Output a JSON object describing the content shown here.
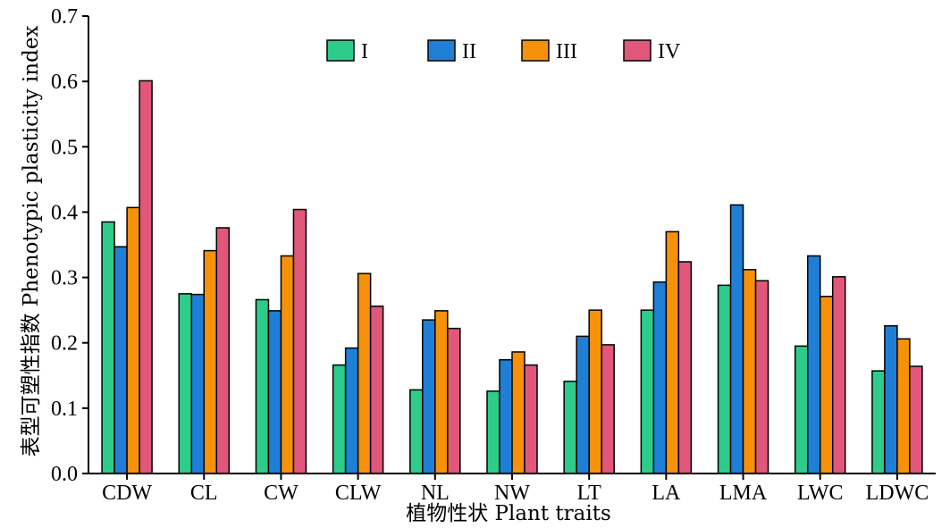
{
  "chart_data": {
    "type": "bar",
    "title": "",
    "xlabel": "植物性状 Plant traits",
    "ylabel": "表型可塑性指数 Phenotypic plasticity index",
    "ylim": [
      0,
      0.7
    ],
    "yticks": [
      "0.0",
      "0.1",
      "0.2",
      "0.3",
      "0.4",
      "0.5",
      "0.6",
      "0.7"
    ],
    "grid": false,
    "legend_position": "top-center",
    "categories": [
      "CDW",
      "CL",
      "CW",
      "CLW",
      "NL",
      "NW",
      "LT",
      "LA",
      "LMA",
      "LWC",
      "LDWC"
    ],
    "series": [
      {
        "name": "I",
        "color": "#2ecc8a",
        "values": [
          0.385,
          0.275,
          0.266,
          0.166,
          0.128,
          0.126,
          0.141,
          0.25,
          0.288,
          0.195,
          0.157
        ]
      },
      {
        "name": "II",
        "color": "#1f7fd6",
        "values": [
          0.347,
          0.274,
          0.249,
          0.192,
          0.235,
          0.174,
          0.21,
          0.293,
          0.411,
          0.333,
          0.226
        ]
      },
      {
        "name": "III",
        "color": "#f5920a",
        "values": [
          0.407,
          0.341,
          0.333,
          0.306,
          0.249,
          0.186,
          0.25,
          0.37,
          0.312,
          0.271,
          0.206
        ]
      },
      {
        "name": "IV",
        "color": "#e0577a",
        "values": [
          0.601,
          0.376,
          0.404,
          0.256,
          0.222,
          0.166,
          0.197,
          0.324,
          0.295,
          0.301,
          0.164
        ]
      }
    ]
  }
}
